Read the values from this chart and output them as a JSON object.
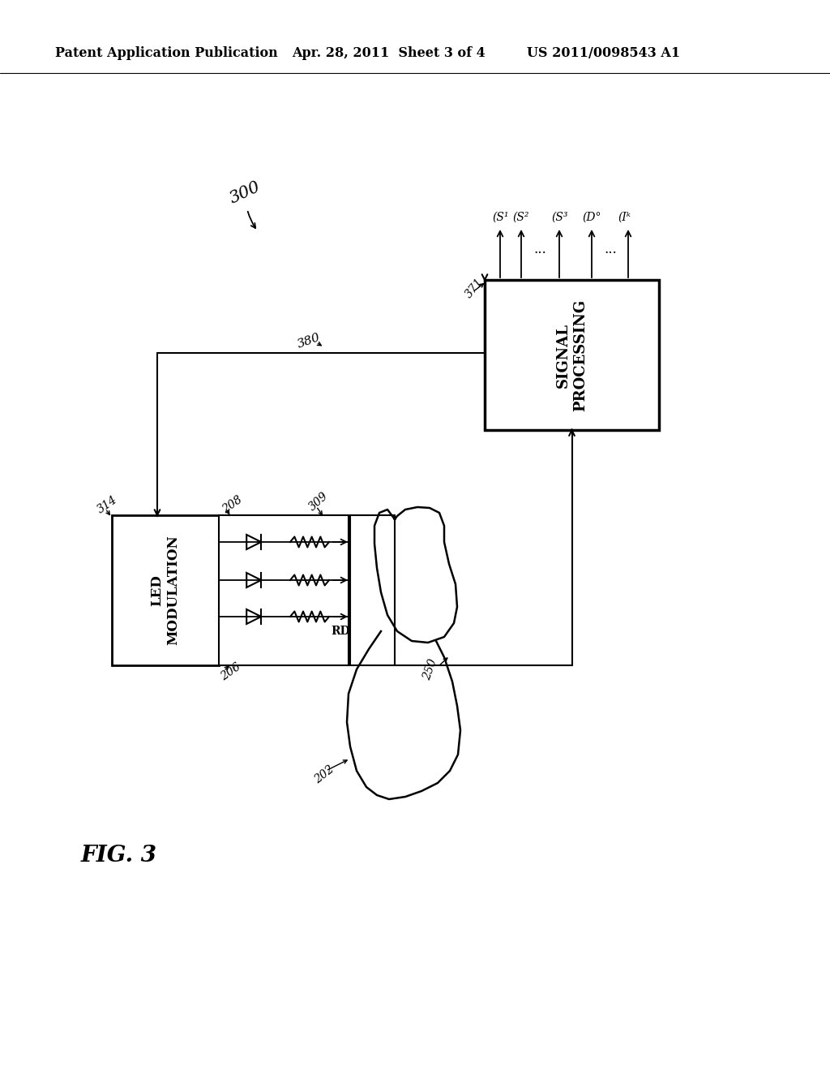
{
  "bg_color": "#ffffff",
  "header_left": "Patent Application Publication",
  "header_mid": "Apr. 28, 2011  Sheet 3 of 4",
  "header_right": "US 2011/0098543 A1",
  "fig_label": "FIG. 3",
  "fig_number": "300",
  "label_314": "314",
  "label_208": "208",
  "label_206": "206",
  "label_309": "309",
  "label_380": "380",
  "label_371": "371",
  "label_250": "250",
  "label_202": "202",
  "label_rd": "RD",
  "led_box_text": "LED\nMODULATION",
  "sig_box_text": "SIGNAL\nPROCESSING"
}
